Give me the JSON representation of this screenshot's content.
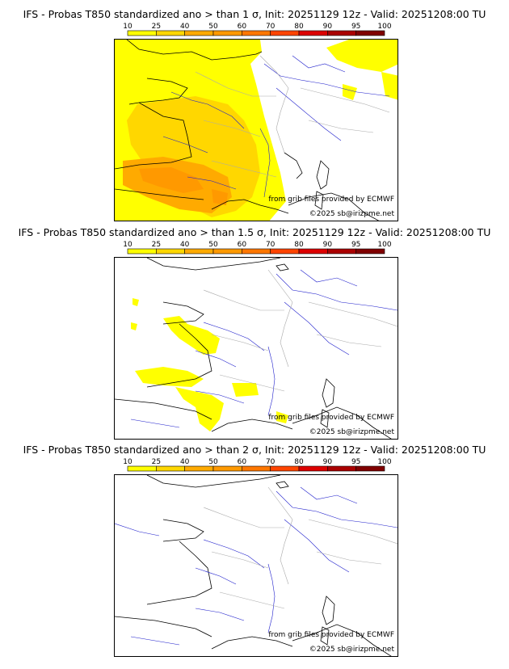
{
  "scale_labels": [
    "10",
    "25",
    "40",
    "50",
    "60",
    "70",
    "80",
    "90",
    "95",
    "100"
  ],
  "scale_colors": [
    "#ffff00",
    "#ffd700",
    "#ffaa00",
    "#ff9900",
    "#ff7700",
    "#ff4400",
    "#dd0000",
    "#aa0000",
    "#800000"
  ],
  "colors": {
    "coast": "#000000",
    "rivers": "#1f1fcc",
    "borders": "#aaaaaa",
    "frame": "#000000"
  },
  "panels": [
    {
      "title": "IFS - Probas T850  standardized ano > than 1 σ, Init: 20251129 12z - Valid: 20251208:00 TU",
      "credit_source": "from grib files provided by ECMWF",
      "credit_copyright": "©2025 sb@irizpme.net"
    },
    {
      "title": "IFS - Probas T850  standardized ano > than 1.5 σ, Init: 20251129 12z - Valid: 20251208:00 TU",
      "credit_source": "from grib files provided by ECMWF",
      "credit_copyright": "©2025 sb@irizpme.net"
    },
    {
      "title": "IFS - Probas T850  standardized ano > than 2 σ, Init: 20251129 12z - Valid: 20251208:00 TU",
      "credit_source": "from grib files provided by ECMWF",
      "credit_copyright": "©2025 sb@irizpme.net"
    }
  ]
}
